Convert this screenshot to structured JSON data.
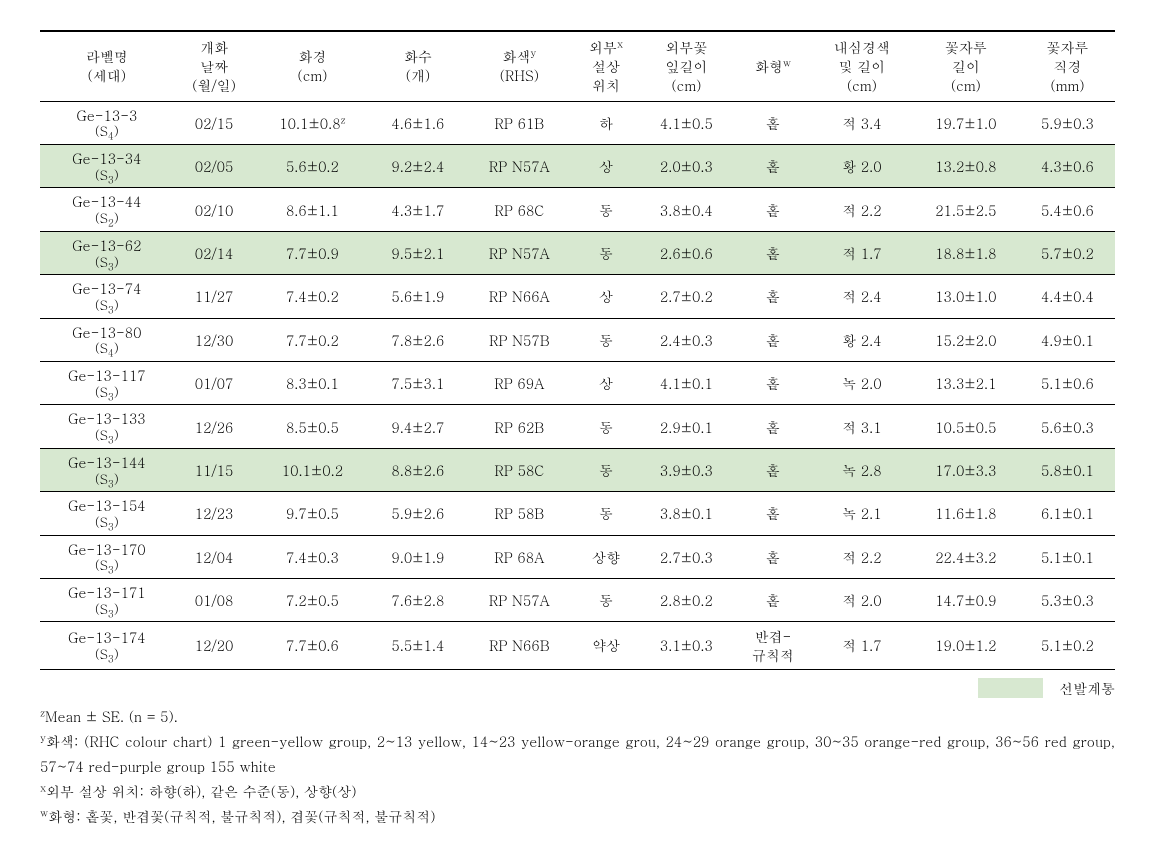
{
  "table": {
    "background_color": "#ffffff",
    "highlight_color": "#d7e8d0",
    "text_color": "#000000",
    "font_size_body": 14,
    "font_size_super": 10,
    "columns": [
      {
        "label_line1": "라벨명",
        "label_line2": "(세대)",
        "sup": ""
      },
      {
        "label_line1": "개화",
        "label_line2": "날짜",
        "label_line3": "(월/일)",
        "sup": ""
      },
      {
        "label_line1": "화경",
        "label_line2": "(cm)",
        "sup": ""
      },
      {
        "label_line1": "화수",
        "label_line2": "(개)",
        "sup": ""
      },
      {
        "label_line1": "화색",
        "label_line2": "(RHS)",
        "sup": "y"
      },
      {
        "label_line1": "외부",
        "label_line2": "설상",
        "label_line3": "위치",
        "sup": "x"
      },
      {
        "label_line1": "외부꽃",
        "label_line2": "잎길이",
        "label_line3": "(cm)",
        "sup": ""
      },
      {
        "label_line1": "화형",
        "sup": "w"
      },
      {
        "label_line1": "내심경색",
        "label_line2": "및 길이",
        "label_line3": "(cm)",
        "sup": ""
      },
      {
        "label_line1": "꽃자루",
        "label_line2": "길이",
        "label_line3": "(cm)",
        "sup": ""
      },
      {
        "label_line1": "꽃자루",
        "label_line2": "직경",
        "label_line3": "(mm)",
        "sup": ""
      }
    ],
    "rows": [
      {
        "hl": false,
        "label": "Ge-13-3",
        "gen": "(S",
        "gensub": "4",
        "genclose": ")",
        "date": "02/15",
        "dia": "10.1±0.8",
        "dia_sup": "z",
        "cnt": "4.6±1.6",
        "rhs": "RP 61B",
        "pos": "하",
        "petal": "4.1±0.5",
        "form": "홑",
        "core": "적 3.4",
        "stalk_len": "19.7±1.0",
        "stalk_dia": "5.9±0.3"
      },
      {
        "hl": true,
        "label": "Ge-13-34",
        "gen": "(S",
        "gensub": "3",
        "genclose": ")",
        "date": "02/05",
        "dia": "5.6±0.2",
        "cnt": "9.2±2.4",
        "rhs": "RP N57A",
        "pos": "상",
        "petal": "2.0±0.3",
        "form": "홑",
        "core": "황 2.0",
        "stalk_len": "13.2±0.8",
        "stalk_dia": "4.3±0.6"
      },
      {
        "hl": false,
        "label": "Ge-13-44",
        "gen": "(S",
        "gensub": "2",
        "genclose": ")",
        "date": "02/10",
        "dia": "8.6±1.1",
        "cnt": "4.3±1.7",
        "rhs": "RP 68C",
        "pos": "동",
        "petal": "3.8±0.4",
        "form": "홑",
        "core": "적 2.2",
        "stalk_len": "21.5±2.5",
        "stalk_dia": "5.4±0.6"
      },
      {
        "hl": true,
        "label": "Ge-13-62",
        "gen": "(S",
        "gensub": "3",
        "genclose": ")",
        "date": "02/14",
        "dia": "7.7±0.9",
        "cnt": "9.5±2.1",
        "rhs": "RP N57A",
        "pos": "동",
        "petal": "2.6±0.6",
        "form": "홑",
        "core": "적 1.7",
        "stalk_len": "18.8±1.8",
        "stalk_dia": "5.7±0.2"
      },
      {
        "hl": false,
        "label": "Ge-13-74",
        "gen": "(S",
        "gensub": "3",
        "genclose": ")",
        "date": "11/27",
        "dia": "7.4±0.2",
        "cnt": "5.6±1.9",
        "rhs": "RP N66A",
        "pos": "상",
        "petal": "2.7±0.2",
        "form": "홑",
        "core": "적 2.4",
        "stalk_len": "13.0±1.0",
        "stalk_dia": "4.4±0.4"
      },
      {
        "hl": false,
        "label": "Ge-13-80",
        "gen": "(S",
        "gensub": "4",
        "genclose": ")",
        "date": "12/30",
        "dia": "7.7±0.2",
        "cnt": "7.8±2.6",
        "rhs": "RP N57B",
        "pos": "동",
        "petal": "2.4±0.3",
        "form": "홑",
        "core": "황 2.4",
        "stalk_len": "15.2±2.0",
        "stalk_dia": "4.9±0.1"
      },
      {
        "hl": false,
        "label": "Ge-13-117",
        "gen": "(S",
        "gensub": "3",
        "genclose": ")",
        "date": "01/07",
        "dia": "8.3±0.1",
        "cnt": "7.5±3.1",
        "rhs": "RP 69A",
        "pos": "상",
        "petal": "4.1±0.1",
        "form": "홑",
        "core": "녹 2.0",
        "stalk_len": "13.3±2.1",
        "stalk_dia": "5.1±0.6"
      },
      {
        "hl": false,
        "label": "Ge-13-133",
        "gen": "(S",
        "gensub": "3",
        "genclose": ")",
        "date": "12/26",
        "dia": "8.5±0.5",
        "cnt": "9.4±2.7",
        "rhs": "RP 62B",
        "pos": "동",
        "petal": "2.9±0.1",
        "form": "홑",
        "core": "적 3.1",
        "stalk_len": "10.5±0.5",
        "stalk_dia": "5.6±0.3"
      },
      {
        "hl": true,
        "label": "Ge-13-144",
        "gen": "(S",
        "gensub": "3",
        "genclose": ")",
        "date": "11/15",
        "dia": "10.1±0.2",
        "cnt": "8.8±2.6",
        "rhs": "RP 58C",
        "pos": "동",
        "petal": "3.9±0.3",
        "form": "홑",
        "core": "녹 2.8",
        "stalk_len": "17.0±3.3",
        "stalk_dia": "5.8±0.1"
      },
      {
        "hl": false,
        "label": "Ge-13-154",
        "gen": "(S",
        "gensub": "3",
        "genclose": ")",
        "date": "12/23",
        "dia": "9.7±0.5",
        "cnt": "5.9±2.6",
        "rhs": "RP 58B",
        "pos": "동",
        "petal": "3.8±0.1",
        "form": "홑",
        "core": "녹 2.1",
        "stalk_len": "11.6±1.8",
        "stalk_dia": "6.1±0.1"
      },
      {
        "hl": false,
        "label": "Ge-13-170",
        "gen": "(S",
        "gensub": "3",
        "genclose": ")",
        "date": "12/04",
        "dia": "7.4±0.3",
        "cnt": "9.0±1.9",
        "rhs": "RP 68A",
        "pos": "상향",
        "petal": "2.7±0.3",
        "form": "홑",
        "core": "적 2.2",
        "stalk_len": "22.4±3.2",
        "stalk_dia": "5.1±0.1"
      },
      {
        "hl": false,
        "label": "Ge-13-171",
        "gen": "(S",
        "gensub": "3",
        "genclose": ")",
        "date": "01/08",
        "dia": "7.2±0.5",
        "cnt": "7.6±2.8",
        "rhs": "RP N57A",
        "pos": "동",
        "petal": "2.8±0.2",
        "form": "홑",
        "core": "적 2.0",
        "stalk_len": "14.7±0.9",
        "stalk_dia": "5.3±0.3"
      },
      {
        "hl": false,
        "label": "Ge-13-174",
        "gen": "(S",
        "gensub": "3",
        "genclose": ")",
        "date": "12/20",
        "dia": "7.7±0.6",
        "cnt": "5.5±1.4",
        "rhs": "RP N66B",
        "pos": "약상",
        "petal": "3.1±0.3",
        "form": "반겹-\n규칙적",
        "core": "적 1.7",
        "stalk_len": "19.0±1.2",
        "stalk_dia": "5.1±0.2"
      }
    ]
  },
  "legend": {
    "swatch_color": "#d7e8d0",
    "label": "선발계통"
  },
  "footnotes": {
    "z": "Mean ± SE. (n = 5).",
    "y": "화색: (RHC colour chart) 1 green-yellow group, 2~13 yellow, 14~23 yellow-orange grou, 24~29 orange group, 30~35 orange-red group, 36~56 red group, 57~74 red-purple group 155 white",
    "x": "외부 설상 위치: 하향(하), 같은 수준(동), 상향(상)",
    "w": "화형: 홑꽃, 반겹꽃(규칙적, 불규칙적), 겹꽃(규칙적, 불규칙적)"
  }
}
